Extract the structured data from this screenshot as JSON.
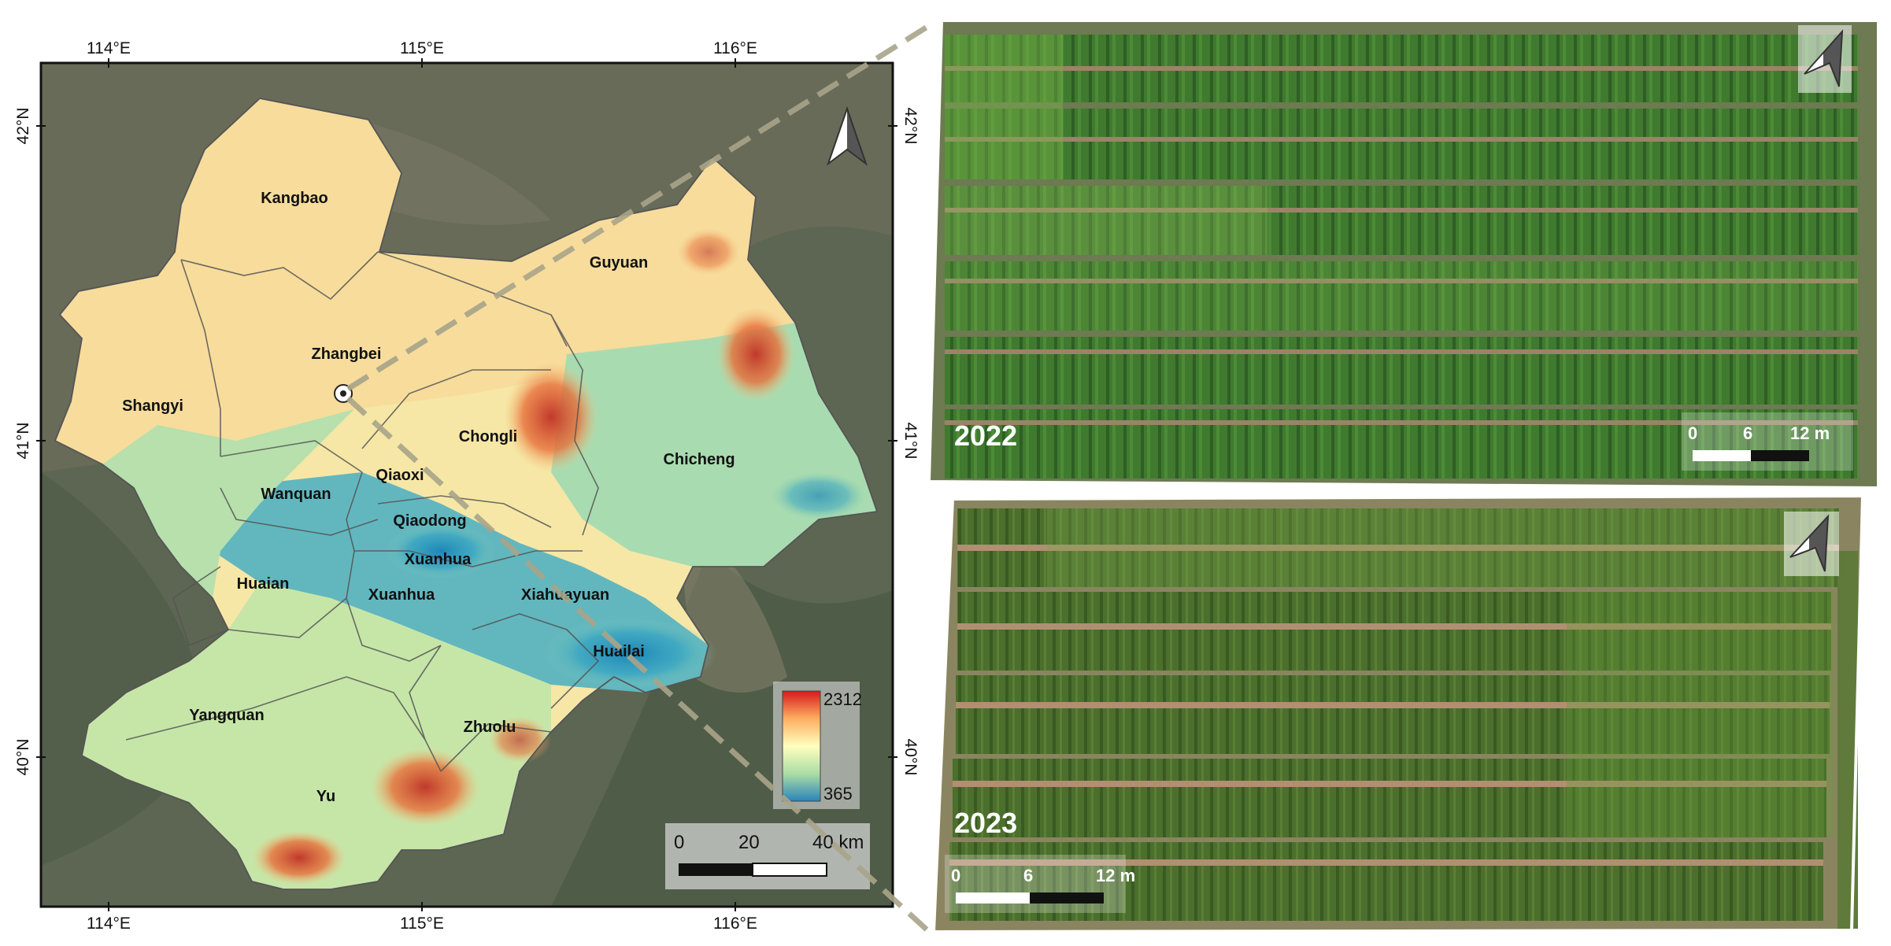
{
  "map": {
    "lon_labels": [
      "114°E",
      "115°E",
      "116°E"
    ],
    "lat_labels": [
      "42°N",
      "41°N",
      "40°N"
    ],
    "regions": [
      {
        "name": "Kangbao"
      },
      {
        "name": "Guyuan"
      },
      {
        "name": "Zhangbei"
      },
      {
        "name": "Shangyi"
      },
      {
        "name": "Chongli"
      },
      {
        "name": "Chicheng"
      },
      {
        "name": "Qiaoxi"
      },
      {
        "name": "Wanquan"
      },
      {
        "name": "Qiaodong"
      },
      {
        "name": "Xuanhua"
      },
      {
        "name": "Huaian"
      },
      {
        "name": "Xuanhua"
      },
      {
        "name": "Xiahuayuan"
      },
      {
        "name": "Huailai"
      },
      {
        "name": "Yangquan"
      },
      {
        "name": "Zhuolu"
      },
      {
        "name": "Yu"
      }
    ],
    "elevation_legend": {
      "max": "2312",
      "min": "365",
      "colors": [
        "#d7191c",
        "#fdae61",
        "#ffffbf",
        "#abdda4",
        "#2b83ba"
      ]
    },
    "scale_bar": {
      "labels": [
        "0",
        "20",
        "40 km"
      ]
    },
    "north_arrow": "north-arrow-icon",
    "site_marker": "site-marker-icon"
  },
  "photos": [
    {
      "year": "2022",
      "scale_labels": [
        "0",
        "6",
        "12 m"
      ]
    },
    {
      "year": "2023",
      "scale_labels": [
        "0",
        "6",
        "12 m"
      ]
    }
  ]
}
